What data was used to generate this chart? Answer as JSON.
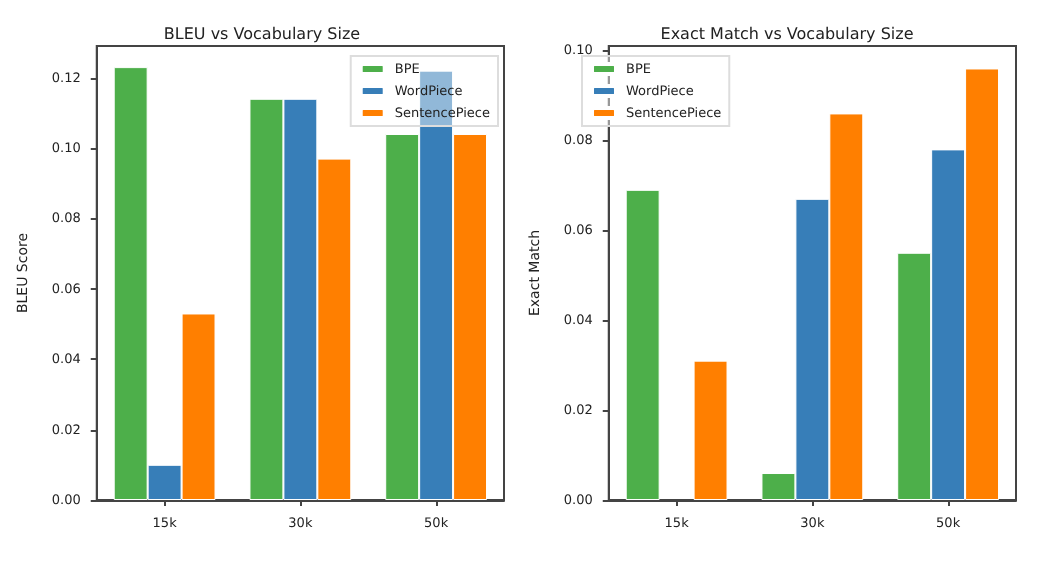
{
  "chart_data": [
    {
      "type": "bar",
      "title": "BLEU vs Vocabulary Size",
      "ylabel": "BLEU Score",
      "categories": [
        "15k",
        "30k",
        "50k"
      ],
      "series": [
        {
          "name": "BPE",
          "color": "#4daf4a",
          "values": [
            0.123,
            0.114,
            0.104
          ]
        },
        {
          "name": "WordPiece",
          "color": "#377eb8",
          "values": [
            0.01,
            0.114,
            0.122
          ]
        },
        {
          "name": "SentencePiece",
          "color": "#ff7f00",
          "values": [
            0.053,
            0.097,
            0.104
          ]
        }
      ],
      "ylim": [
        0,
        0.129
      ],
      "yticks": [
        {
          "value": 0,
          "label": "0.00"
        },
        {
          "value": 0.02,
          "label": "0.02"
        },
        {
          "value": 0.04,
          "label": "0.04"
        },
        {
          "value": 0.06,
          "label": "0.06"
        },
        {
          "value": 0.08,
          "label": "0.08"
        },
        {
          "value": 0.1,
          "label": "0.10"
        },
        {
          "value": 0.12,
          "label": "0.12"
        }
      ],
      "legend": "top right"
    },
    {
      "type": "bar",
      "title": "Exact Match vs Vocabulary Size",
      "ylabel": "Exact Match",
      "categories": [
        "15k",
        "30k",
        "50k"
      ],
      "series": [
        {
          "name": "BPE",
          "color": "#4daf4a",
          "values": [
            0.069,
            0.006,
            0.055
          ]
        },
        {
          "name": "WordPiece",
          "color": "#377eb8",
          "values": [
            null,
            0.067,
            0.078
          ]
        },
        {
          "name": "SentencePiece",
          "color": "#ff7f00",
          "values": [
            0.031,
            0.086,
            0.096
          ]
        }
      ],
      "ylim": [
        0,
        0.101
      ],
      "yticks": [
        {
          "value": 0,
          "label": "0.00"
        },
        {
          "value": 0.02,
          "label": "0.02"
        },
        {
          "value": 0.04,
          "label": "0.04"
        },
        {
          "value": 0.06,
          "label": "0.06"
        },
        {
          "value": 0.08,
          "label": "0.08"
        },
        {
          "value": 0.1,
          "label": "0.10"
        }
      ],
      "legend": "top left"
    }
  ]
}
